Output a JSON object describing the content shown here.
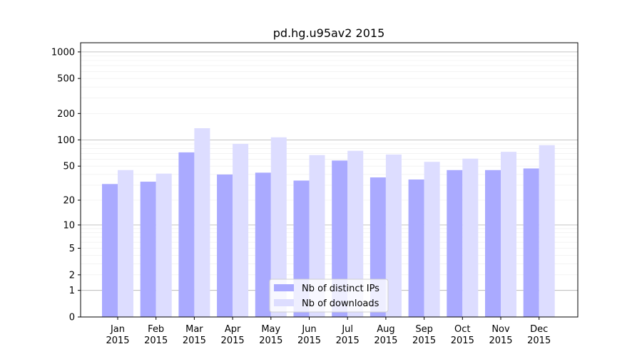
{
  "chart_data": {
    "type": "bar",
    "title": "pd.hg.u95av2 2015",
    "xlabel": "",
    "ylabel": "",
    "yscale": "symlog (log10(1+y))",
    "ylim": [
      0,
      1270
    ],
    "yticks": [
      0,
      1,
      2,
      5,
      10,
      20,
      50,
      100,
      200,
      500,
      1000
    ],
    "categories": [
      "Jan\n2015",
      "Feb\n2015",
      "Mar\n2015",
      "Apr\n2015",
      "May\n2015",
      "Jun\n2015",
      "Jul\n2015",
      "Aug\n2015",
      "Sep\n2015",
      "Oct\n2015",
      "Nov\n2015",
      "Dec\n2015"
    ],
    "series": [
      {
        "name": "Nb of distinct IPs",
        "color": "#aaaaff",
        "values": [
          31,
          33,
          72,
          40,
          42,
          34,
          58,
          37,
          35,
          45,
          45,
          47
        ]
      },
      {
        "name": "Nb of downloads",
        "color": "#ddddff",
        "values": [
          45,
          41,
          136,
          90,
          107,
          67,
          75,
          68,
          56,
          61,
          73,
          87
        ]
      }
    ],
    "grid": true,
    "legend": "lower-center"
  }
}
